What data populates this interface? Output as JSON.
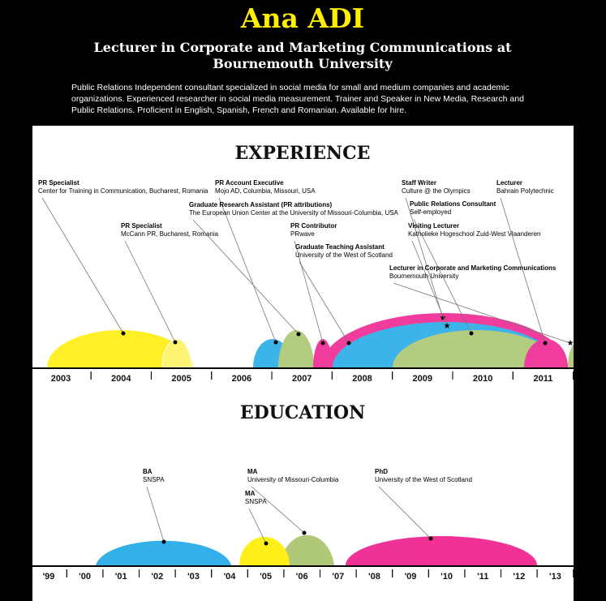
{
  "header": {
    "name": "Ana ADI",
    "title_lines": [
      "Lecturer in Corporate and Marketing Communications at",
      "Bournemouth University"
    ],
    "description_lines": [
      "Public Relations Independent consultant specialized in social media for small and medium companies and academic",
      "organizations. Experienced researcher in social media measurement. Trainer and Speaker in New Media, Research and",
      "Public Relations. Proficient in English, Spanish, French and Romanian. Available for hire."
    ]
  },
  "experience": {
    "heading": "EXPERIENCE",
    "items": [
      {
        "title": "PR Specialist",
        "org": "Center for Training in Communication, Bucharest, Romania"
      },
      {
        "title": "PR Specialist",
        "org": "McCann PR, Bucharest, Romania"
      },
      {
        "title": "PR Account Executive",
        "org": "Mojo AD, Columbia, Missouri, USA"
      },
      {
        "title": "Graduate Research Assistant (PR attributions)",
        "org": "The European Union Center at the University of Missouri-Columbia, USA"
      },
      {
        "title": "PR Contributor",
        "org": "PRwave"
      },
      {
        "title": "Graduate Teaching Assistant",
        "org": "University of the West of Scotland"
      },
      {
        "title": "Staff Writer",
        "org": "Culture @ the Olympics"
      },
      {
        "title": "Public Relations Consultant",
        "org": "Self-employed"
      },
      {
        "title": "Visiting Lecturer",
        "org": "Katholieke Hogeschool Zuid-West Vlaanderen"
      },
      {
        "title": "Lecturer in Corporate and Marketing Communications",
        "org": "Bournemouth University"
      },
      {
        "title": "Lecturer",
        "org": "Bahrain Polytechnic"
      }
    ],
    "years": [
      "2003",
      "2004",
      "2005",
      "2006",
      "2007",
      "2008",
      "2009",
      "2010",
      "2011"
    ]
  },
  "education": {
    "heading": "EDUCATION",
    "items": [
      {
        "title": "BA",
        "org": "SNSPA"
      },
      {
        "title": "MA",
        "org": "University of Missouri-Columbia"
      },
      {
        "title": "MA",
        "org": "SNSPA"
      },
      {
        "title": "PhD",
        "org": "University of the West of Scotland"
      }
    ],
    "years": [
      "'99",
      "'00",
      "'01",
      "'02",
      "'03",
      "'04",
      "'05",
      "'06",
      "'07",
      "'08",
      "'09",
      "'10",
      "'11",
      "'12",
      "'13"
    ]
  }
}
